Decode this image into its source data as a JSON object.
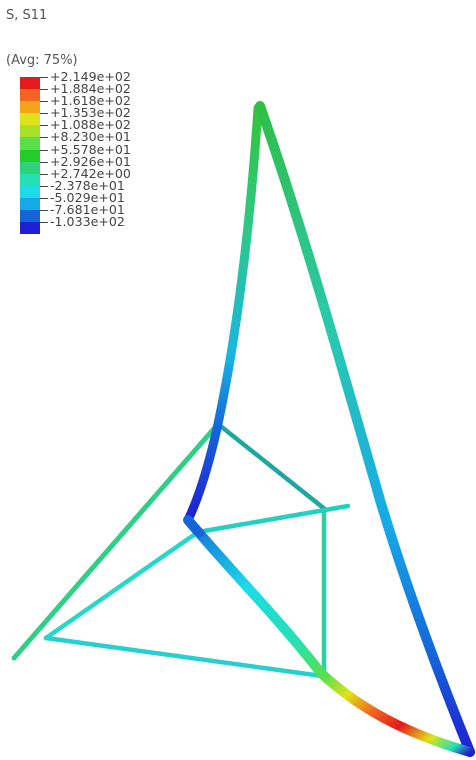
{
  "header": {
    "variable": "S, S11",
    "averaging": "(Avg: 75%)"
  },
  "legend": {
    "labels": [
      "+2.149e+02",
      "+1.884e+02",
      "+1.618e+02",
      "+1.353e+02",
      "+1.088e+02",
      "+8.230e+01",
      "+5.578e+01",
      "+2.926e+01",
      "+2.742e+00",
      "-2.378e+01",
      "-5.029e+01",
      "-7.681e+01",
      "-1.033e+02"
    ],
    "colors": [
      "#e41a1c",
      "#f26420",
      "#f6a21a",
      "#dfe21a",
      "#a8e02a",
      "#5ae04a",
      "#22cc2a",
      "#2ed27a",
      "#25e0b2",
      "#1ddbe8",
      "#16a9e8",
      "#1565d8",
      "#1f1fd4"
    ]
  }
}
